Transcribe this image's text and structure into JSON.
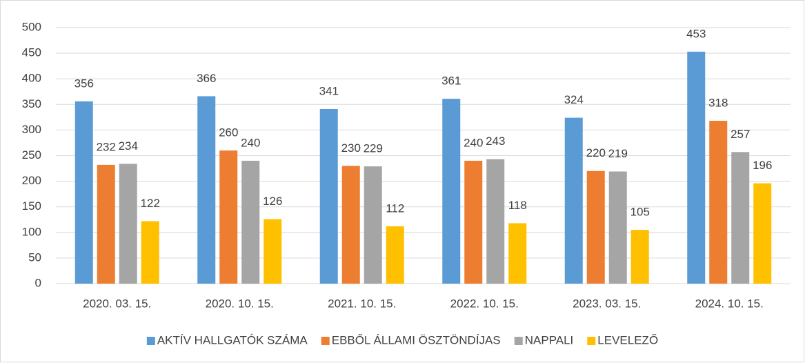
{
  "chart_data": {
    "type": "bar",
    "categories": [
      "2020. 03. 15.",
      "2020. 10. 15.",
      "2021. 10. 15.",
      "2022. 10. 15.",
      "2023. 03. 15.",
      "2024. 10. 15."
    ],
    "series": [
      {
        "name": "AKTÍV HALLGATÓK SZÁMA",
        "color": "#5b9bd5",
        "values": [
          356,
          366,
          341,
          361,
          324,
          453
        ]
      },
      {
        "name": "EBBŐL ÁLLAMI ÖSZTÖNDÍJAS",
        "color": "#ed7d31",
        "values": [
          232,
          260,
          230,
          240,
          220,
          318
        ]
      },
      {
        "name": "NAPPALI",
        "color": "#a5a5a5",
        "values": [
          234,
          240,
          229,
          243,
          219,
          257
        ]
      },
      {
        "name": "LEVELEZŐ",
        "color": "#ffc000",
        "values": [
          122,
          126,
          112,
          118,
          105,
          196
        ]
      }
    ],
    "ylim": [
      0,
      500
    ],
    "yticks": [
      0,
      50,
      100,
      150,
      200,
      250,
      300,
      350,
      400,
      450,
      500
    ],
    "grid": true,
    "legend": "bottom"
  }
}
